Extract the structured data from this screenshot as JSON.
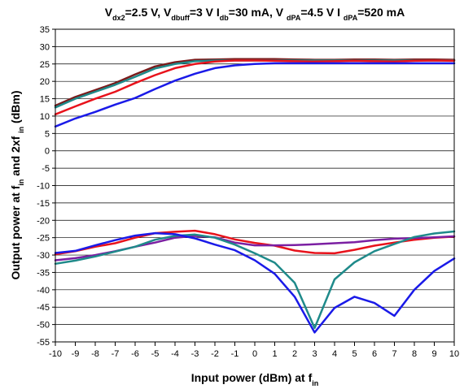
{
  "chart_data": {
    "type": "line",
    "title": {
      "parts": [
        {
          "text": "V",
          "sub": false
        },
        {
          "text": "dx2",
          "sub": true
        },
        {
          "text": "=2.5 V, V",
          "sub": false
        },
        {
          "text": "dbuff",
          "sub": true
        },
        {
          "text": "=3 V I",
          "sub": false
        },
        {
          "text": "db",
          "sub": true
        },
        {
          "text": "=30 mA, V ",
          "sub": false
        },
        {
          "text": "dPA",
          "sub": true
        },
        {
          "text": "=4.5 V I ",
          "sub": false
        },
        {
          "text": "dPA",
          "sub": true
        },
        {
          "text": "=520 mA",
          "sub": false
        }
      ]
    },
    "xlabel": {
      "parts": [
        {
          "text": "Input power (dBm) at f",
          "sub": false
        },
        {
          "text": "in",
          "sub": true
        }
      ]
    },
    "ylabel": {
      "parts": [
        {
          "text": "Output power at f",
          "sub": false
        },
        {
          "text": "in",
          "sub": true
        },
        {
          "text": " and 2xf ",
          "sub": false
        },
        {
          "text": "in",
          "sub": true
        },
        {
          "text": " (dBm)",
          "sub": false
        }
      ]
    },
    "xlim": [
      -10,
      10
    ],
    "ylim": [
      -55,
      35
    ],
    "xticks": [
      -10,
      -9,
      -8,
      -7,
      -6,
      -5,
      -4,
      -3,
      -2,
      -1,
      0,
      1,
      2,
      3,
      4,
      5,
      6,
      7,
      8,
      9,
      10
    ],
    "yticks": [
      35,
      30,
      25,
      20,
      15,
      10,
      5,
      0,
      -5,
      -10,
      -15,
      -20,
      -25,
      -30,
      -35,
      -40,
      -45,
      -50,
      -55
    ],
    "grid": "horizontal",
    "x": [
      -10,
      -9,
      -8,
      -7,
      -6,
      -5,
      -4,
      -3,
      -2,
      -1,
      0,
      1,
      2,
      3,
      4,
      5,
      6,
      7,
      8,
      9,
      10
    ],
    "series": [
      {
        "color": "#7a1a1a",
        "width": 2.5,
        "values": [
          13.0,
          15.5,
          17.5,
          19.5,
          22.0,
          24.3,
          25.5,
          26.2,
          26.3,
          26.4,
          26.4,
          26.4,
          26.3,
          26.2,
          26.2,
          26.3,
          26.3,
          26.2,
          26.3,
          26.3,
          26.2
        ]
      },
      {
        "color": "#1f8a8a",
        "width": 2.5,
        "values": [
          12.5,
          15.0,
          17.0,
          19.0,
          21.3,
          23.7,
          25.0,
          25.8,
          26.0,
          26.0,
          26.0,
          26.0,
          26.0,
          26.0,
          26.0,
          26.0,
          26.0,
          26.0,
          26.0,
          26.0,
          26.0
        ]
      },
      {
        "color": "#e8121b",
        "width": 2.5,
        "values": [
          10.5,
          12.8,
          15.0,
          17.0,
          19.5,
          21.8,
          23.8,
          25.0,
          25.7,
          26.0,
          26.0,
          25.9,
          25.8,
          25.7,
          25.8,
          25.9,
          25.8,
          25.7,
          25.9,
          26.0,
          25.9
        ]
      },
      {
        "color": "#1a1ae8",
        "width": 2.5,
        "values": [
          7.0,
          9.3,
          11.2,
          13.3,
          15.2,
          17.8,
          20.2,
          22.2,
          23.8,
          24.6,
          25.0,
          25.2,
          25.2,
          25.2,
          25.2,
          25.2,
          25.2,
          25.2,
          25.2,
          25.2,
          25.2
        ]
      },
      {
        "color": "#e8121b",
        "width": 2.5,
        "values": [
          -29.8,
          -28.9,
          -27.6,
          -26.6,
          -25.0,
          -23.7,
          -23.3,
          -23.0,
          -24.0,
          -25.5,
          -26.5,
          -27.3,
          -28.7,
          -29.4,
          -29.5,
          -28.5,
          -27.3,
          -26.4,
          -25.6,
          -25.0,
          -24.7
        ]
      },
      {
        "color": "#7b1fa2",
        "width": 2.5,
        "values": [
          -31.5,
          -30.9,
          -30.0,
          -28.9,
          -27.6,
          -26.4,
          -25.0,
          -24.5,
          -24.9,
          -26.4,
          -27.2,
          -27.2,
          -27.1,
          -26.9,
          -26.6,
          -26.3,
          -25.7,
          -25.3,
          -25.1,
          -24.9,
          -24.6
        ]
      },
      {
        "color": "#1f8a8a",
        "width": 2.5,
        "values": [
          -32.5,
          -31.6,
          -30.4,
          -29.0,
          -27.6,
          -25.6,
          -24.5,
          -24.1,
          -25.0,
          -27.0,
          -29.5,
          -32.2,
          -38.0,
          -51.0,
          -37.0,
          -32.1,
          -28.9,
          -26.8,
          -24.8,
          -23.8,
          -23.2
        ]
      },
      {
        "color": "#1a1ae8",
        "width": 2.5,
        "values": [
          -29.4,
          -28.8,
          -27.2,
          -25.7,
          -24.4,
          -23.7,
          -24.0,
          -25.2,
          -27.0,
          -28.6,
          -31.5,
          -35.4,
          -42.0,
          -52.3,
          -45.2,
          -42.0,
          -43.8,
          -47.5,
          -40.0,
          -34.6,
          -31.0
        ]
      }
    ]
  }
}
